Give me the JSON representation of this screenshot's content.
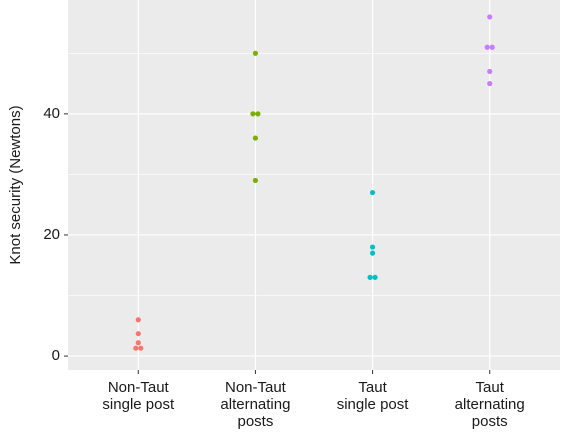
{
  "chart_data": {
    "type": "strip",
    "y_label": "Knot security (Newtons)",
    "categories": [
      [
        "Non-Taut",
        "single post"
      ],
      [
        "Non-Taut",
        "alternating",
        "posts"
      ],
      [
        "Taut",
        "single post"
      ],
      [
        "Taut",
        "alternating",
        "posts"
      ]
    ],
    "colors": [
      "#f8766d",
      "#7cae00",
      "#00bfc4",
      "#c77cff"
    ],
    "values": [
      [
        6,
        3.7,
        2.2,
        1.3,
        1.3
      ],
      [
        50,
        40,
        40,
        36,
        29
      ],
      [
        27,
        18,
        17,
        13,
        13
      ],
      [
        56,
        51,
        51,
        47,
        45
      ]
    ],
    "ylim": [
      -2.3,
      58.8
    ],
    "yticks": [
      0,
      20,
      40
    ],
    "yminor": [
      10,
      30,
      50
    ],
    "grid": true
  }
}
